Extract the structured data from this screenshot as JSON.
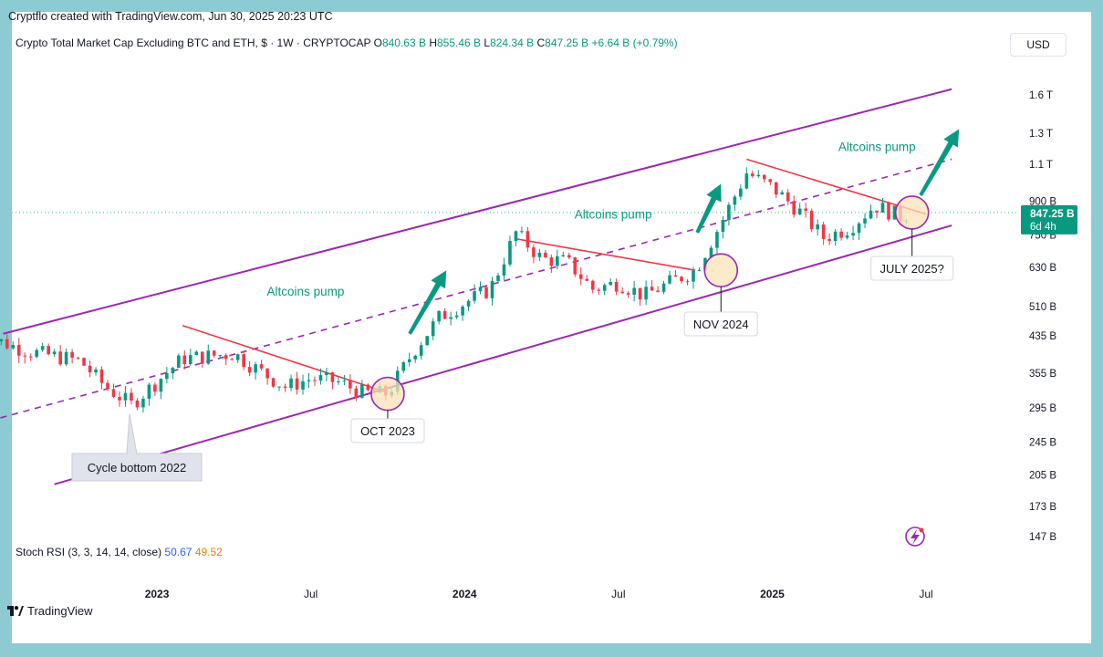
{
  "header": {
    "published": "Cryptflo created with TradingView.com, Jun 30, 2025 20:23 UTC",
    "symbol": "Crypto Total Market Cap Excluding BTC and ETH, $ · 1W · CRYPTOCAP",
    "o_label": "O",
    "o_value": "840.63 B",
    "h_label": "H",
    "h_value": "855.46 B",
    "l_label": "L",
    "l_value": "824.34 B",
    "c_label": "C",
    "c_value": "847.25 B",
    "change": "+6.64 B (+0.79%)"
  },
  "currency": "USD",
  "price_tag": {
    "value": "847.25 B",
    "countdown": "6d 4h"
  },
  "indicator": {
    "label": "Stoch RSI (3, 3, 14, 14, close)",
    "k": "50.67",
    "d": "49.52"
  },
  "branding": "TradingView",
  "colors": {
    "up": "#089981",
    "down": "#f23645",
    "channel": "#9c27b0",
    "trend": "#f23645",
    "arrow": "#089981",
    "circle_fill": "#fbe3b8",
    "price_tag": "#089981"
  },
  "chart_data": {
    "type": "candlestick",
    "title": "Crypto Total Market Cap Excluding BTC and ETH",
    "y_scale": "log",
    "y_ticks": [
      "1.6 T",
      "1.3 T",
      "1.1 T",
      "900 B",
      "750 B",
      "630 B",
      "510 B",
      "435 B",
      "355 B",
      "295 B",
      "245 B",
      "205 B",
      "173 B",
      "147 B"
    ],
    "y_tick_values_b": [
      1600,
      1300,
      1100,
      900,
      750,
      630,
      510,
      435,
      355,
      295,
      245,
      205,
      173,
      147
    ],
    "x_ticks": [
      "2023",
      "Jul",
      "2024",
      "Jul",
      "2025",
      "Jul"
    ],
    "last_close_b": 847.25,
    "anchors_b": [
      [
        "2022-06",
        440
      ],
      [
        "2022-08",
        400
      ],
      [
        "2022-10",
        380
      ],
      [
        "2022-11",
        330
      ],
      [
        "2022-12",
        300
      ],
      [
        "2023-01",
        340
      ],
      [
        "2023-02",
        385
      ],
      [
        "2023-03",
        390
      ],
      [
        "2023-04",
        395
      ],
      [
        "2023-05",
        360
      ],
      [
        "2023-06",
        330
      ],
      [
        "2023-07",
        345
      ],
      [
        "2023-08",
        340
      ],
      [
        "2023-09",
        320
      ],
      [
        "2023-10",
        318
      ],
      [
        "2023-11",
        400
      ],
      [
        "2023-12",
        480
      ],
      [
        "2024-01",
        520
      ],
      [
        "2024-02",
        560
      ],
      [
        "2024-03",
        760
      ],
      [
        "2024-04",
        660
      ],
      [
        "2024-05",
        650
      ],
      [
        "2024-06",
        560
      ],
      [
        "2024-07",
        580
      ],
      [
        "2024-08",
        540
      ],
      [
        "2024-09",
        580
      ],
      [
        "2024-10",
        620
      ],
      [
        "2024-11",
        800
      ],
      [
        "2024-12",
        1050
      ],
      [
        "2025-01",
        970
      ],
      [
        "2025-02",
        860
      ],
      [
        "2025-03",
        740
      ],
      [
        "2025-04",
        780
      ],
      [
        "2025-05",
        880
      ],
      [
        "2025-06",
        830
      ],
      [
        "2025-06-30",
        847.25
      ]
    ],
    "channel_upper": [
      [
        "2022-07",
        440
      ],
      [
        "2025-08",
        1650
      ]
    ],
    "channel_mid": [
      [
        "2022-06",
        270
      ],
      [
        "2025-08",
        1130
      ]
    ],
    "channel_lower": [
      [
        "2022-09",
        195
      ],
      [
        "2025-08",
        790
      ]
    ],
    "downtrends": [
      {
        "from": [
          "2023-02",
          460
        ],
        "to": [
          "2023-10",
          320
        ]
      },
      {
        "from": [
          "2024-03",
          735
        ],
        "to": [
          "2024-10",
          620
        ]
      },
      {
        "from": [
          "2024-12",
          1130
        ],
        "to": [
          "2025-07",
          840
        ]
      }
    ],
    "annotations": [
      {
        "text": "Altcoins pump",
        "at": "2023-07"
      },
      {
        "text": "Altcoins pump",
        "at": "2024-08"
      },
      {
        "text": "Altcoins pump",
        "at": "2025-05"
      }
    ],
    "callouts": [
      "Cycle bottom 2022",
      "OCT 2023",
      "NOV 2024",
      "JULY 2025?"
    ]
  }
}
